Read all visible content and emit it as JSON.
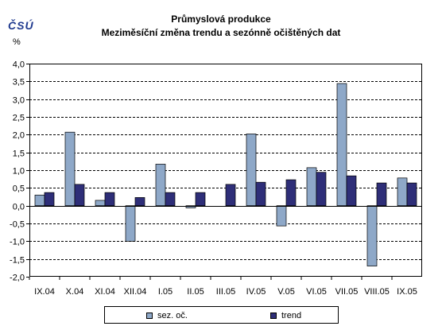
{
  "logo": "ČSÚ",
  "chart_data": {
    "type": "bar",
    "title": "Průmyslová produkce",
    "subtitle": "Meziměsíční změna trendu a sezónně očištěných dat",
    "ylabel": "%",
    "ylim": [
      -2.0,
      4.0
    ],
    "ytick_step": 0.5,
    "grid": true,
    "legend_position": "bottom",
    "categories": [
      "IX.04",
      "X.04",
      "XI.04",
      "XII.04",
      "I.05",
      "II.05",
      "III.05",
      "IV.05",
      "V.05",
      "VI.05",
      "VII.05",
      "VIII.05",
      "IX.05"
    ],
    "series": [
      {
        "name": "sez. oč.",
        "color": "#8ea8c8",
        "values": [
          0.3,
          2.07,
          0.15,
          -1.0,
          1.17,
          -0.06,
          0.0,
          2.02,
          -0.57,
          1.07,
          3.44,
          -1.7,
          0.78
        ]
      },
      {
        "name": "trend",
        "color": "#2e2e78",
        "values": [
          0.37,
          0.6,
          0.37,
          0.23,
          0.37,
          0.37,
          0.6,
          0.66,
          0.73,
          0.94,
          0.84,
          0.64,
          0.64
        ]
      }
    ]
  }
}
